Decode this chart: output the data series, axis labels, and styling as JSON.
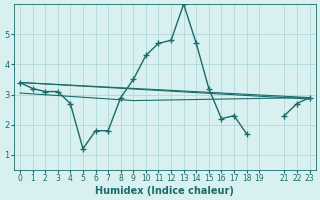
{
  "xlabel": "Humidex (Indice chaleur)",
  "ylabel": "",
  "bg_color": "#d8f0f0",
  "grid_color": "#b0d8d8",
  "line_color": "#1a6b6b",
  "xlim": [
    -0.5,
    23.5
  ],
  "ylim": [
    0.5,
    6.0
  ],
  "xticks": [
    0,
    1,
    2,
    3,
    4,
    5,
    6,
    7,
    8,
    9,
    10,
    11,
    12,
    13,
    14,
    15,
    16,
    17,
    18,
    19,
    21,
    22,
    23
  ],
  "yticks": [
    1,
    2,
    3,
    4,
    5
  ],
  "series": [
    {
      "x": [
        0,
        1,
        2,
        3,
        4,
        5,
        6,
        7,
        8,
        9,
        10,
        11,
        12,
        13,
        14,
        15,
        16,
        17,
        18,
        19,
        21,
        22,
        23
      ],
      "y": [
        3.4,
        3.2,
        3.1,
        3.1,
        2.7,
        1.2,
        1.8,
        1.8,
        2.9,
        3.5,
        4.3,
        4.7,
        4.8,
        6.0,
        4.7,
        3.2,
        2.2,
        2.3,
        1.7,
        null,
        null,
        null,
        null
      ],
      "has_markers": true
    },
    {
      "x": [
        0,
        23
      ],
      "y": [
        3.4,
        2.9
      ],
      "has_markers": false
    },
    {
      "x": [
        0,
        23
      ],
      "y": [
        3.4,
        2.85
      ],
      "has_markers": false
    },
    {
      "x": [
        0,
        9,
        23
      ],
      "y": [
        3.05,
        2.8,
        2.9
      ],
      "has_markers": false
    },
    {
      "x": [
        19,
        21,
        22,
        23
      ],
      "y": [
        null,
        2.3,
        2.7,
        2.9
      ],
      "has_markers": true
    }
  ]
}
